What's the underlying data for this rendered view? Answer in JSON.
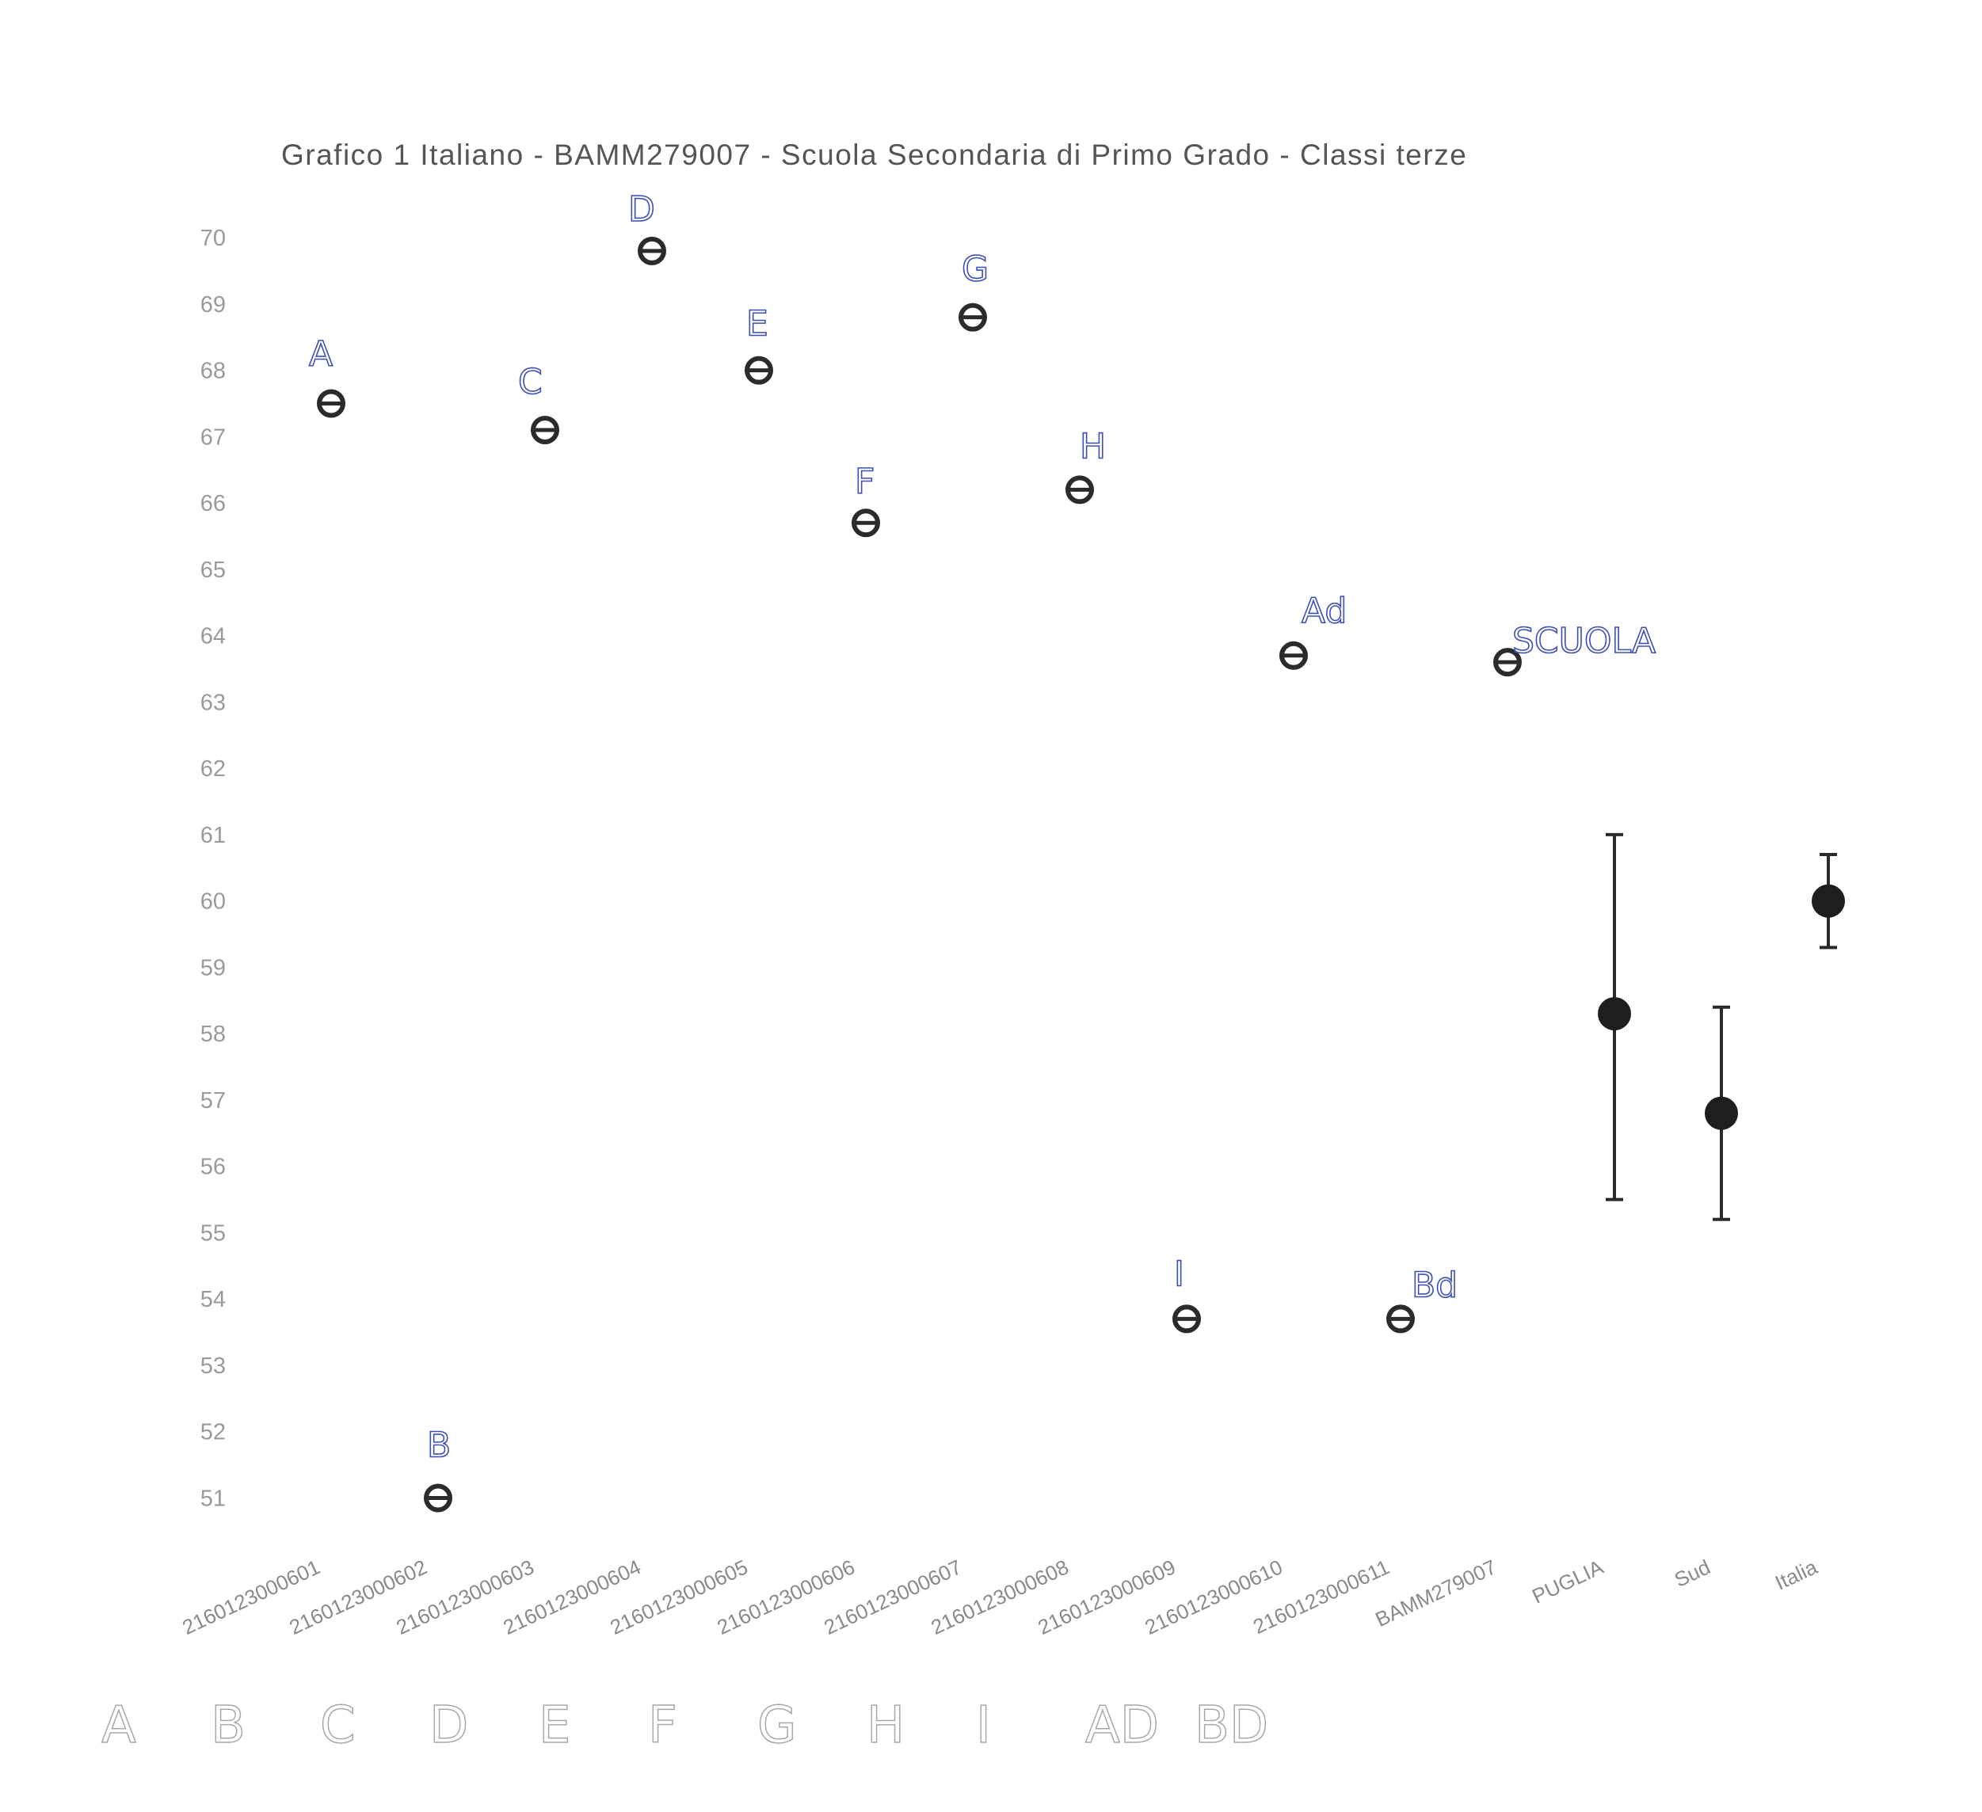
{
  "chart_data": {
    "type": "scatter",
    "title": "Grafico 1 Italiano - BAMM279007 - Scuola Secondaria di Primo Grado - Classi terze",
    "xlabel": "",
    "ylabel": "",
    "ylim": [
      50.6,
      70.3
    ],
    "yticks": [
      "51",
      "52",
      "53",
      "54",
      "55",
      "56",
      "57",
      "58",
      "59",
      "60",
      "61",
      "62",
      "63",
      "64",
      "65",
      "66",
      "67",
      "68",
      "69",
      "70"
    ],
    "grid": false,
    "categories": [
      "2160123000601",
      "2160123000602",
      "2160123000603",
      "2160123000604",
      "2160123000605",
      "2160123000606",
      "2160123000607",
      "2160123000608",
      "2160123000609",
      "2160123000610",
      "2160123000611",
      "BAMM279007",
      "PUGLIA",
      "Sud",
      "Italia"
    ],
    "points": [
      {
        "category": "2160123000601",
        "y": 67.5,
        "annotation": "A"
      },
      {
        "category": "2160123000602",
        "y": 51.0,
        "annotation": "B"
      },
      {
        "category": "2160123000603",
        "y": 67.1,
        "annotation": "C"
      },
      {
        "category": "2160123000604",
        "y": 69.8,
        "annotation": "D"
      },
      {
        "category": "2160123000605",
        "y": 68.0,
        "annotation": "E"
      },
      {
        "category": "2160123000606",
        "y": 65.7,
        "annotation": "F"
      },
      {
        "category": "2160123000607",
        "y": 68.8,
        "annotation": "G"
      },
      {
        "category": "2160123000608",
        "y": 66.2,
        "annotation": "H"
      },
      {
        "category": "2160123000609",
        "y": 53.7,
        "annotation": "I"
      },
      {
        "category": "2160123000610",
        "y": 63.7,
        "annotation": "Ad"
      },
      {
        "category": "2160123000611",
        "y": 53.7,
        "annotation": "Bd"
      },
      {
        "category": "BAMM279007",
        "y": 63.6,
        "annotation": "SCUOLA"
      }
    ],
    "references": [
      {
        "category": "PUGLIA",
        "y": 58.3,
        "low": 55.5,
        "high": 61.0
      },
      {
        "category": "Sud",
        "y": 56.8,
        "low": 55.2,
        "high": 58.4
      },
      {
        "category": "Italia",
        "y": 60.0,
        "low": 59.3,
        "high": 60.7
      }
    ],
    "bottom_handwriting": [
      "A",
      "B",
      "C",
      "D",
      "E",
      "F",
      "G",
      "H",
      "I",
      "AD",
      "BD"
    ]
  }
}
